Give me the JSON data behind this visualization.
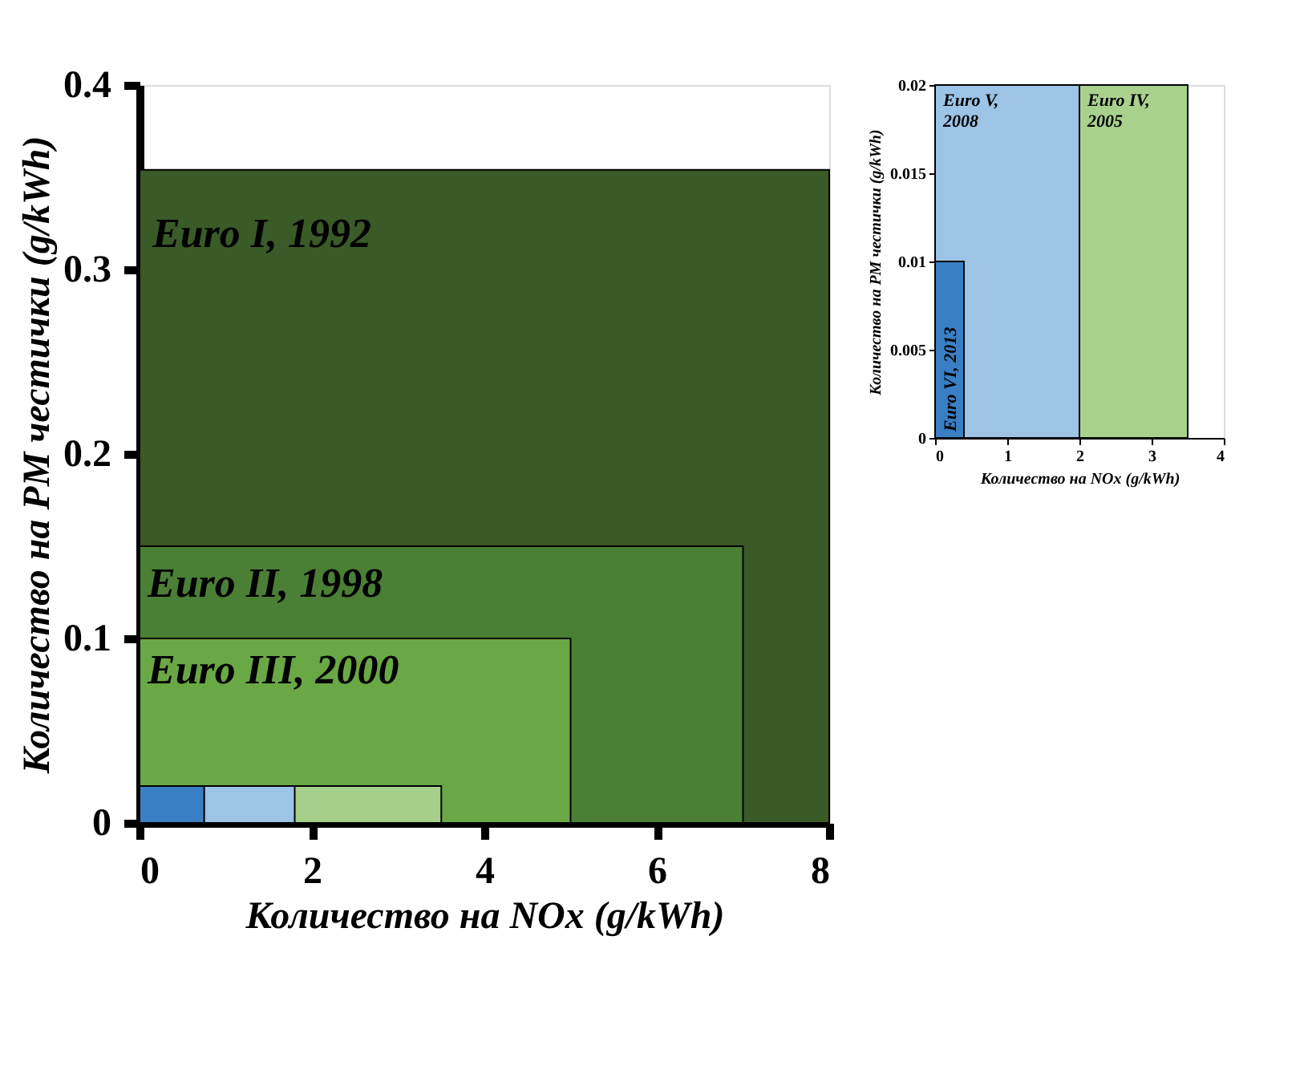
{
  "chart_data": [
    {
      "type": "area",
      "xlabel": "Количество на NOx (g/kWh)",
      "ylabel": "Количество на PM честички (g/kWh)",
      "xlim": [
        0,
        8
      ],
      "xticks": [
        0,
        2,
        4,
        6,
        8
      ],
      "ylim": [
        0,
        0.4
      ],
      "yticks": [
        0,
        0.1,
        0.2,
        0.3,
        0.4
      ],
      "grid": false,
      "legend": false,
      "series": [
        {
          "color": "#3a5a27",
          "x": [
            0,
            8
          ],
          "values": [
            0.354,
            0.354
          ]
        },
        {
          "color": "#4a7f35",
          "x": [
            0,
            7
          ],
          "values": [
            0.15,
            0.15
          ]
        },
        {
          "color": "#6aa845",
          "x": [
            0,
            5
          ],
          "values": [
            0.1,
            0.1
          ]
        },
        {
          "color": "#a6d08a",
          "x": [
            0,
            3.5
          ],
          "values": [
            0.02,
            0.02
          ]
        },
        {
          "color": "#9dc3e6",
          "x": [
            0,
            1.8
          ],
          "values": [
            0.02,
            0.02
          ]
        },
        {
          "color": "#3a7fc4",
          "x": [
            0,
            0.75
          ],
          "values": [
            0.02,
            0.02
          ]
        }
      ],
      "annotations": [
        "Euro I, 1992",
        "Euro II, 1998",
        "Euro III, 2000"
      ]
    },
    {
      "type": "area",
      "xlabel": "Количество на NOx (g/kWh)",
      "ylabel": "Количество на PM честички (g/kWh)",
      "xlim": [
        0,
        4
      ],
      "xticks": [
        0,
        1,
        2,
        3,
        4
      ],
      "ylim": [
        0,
        0.02
      ],
      "yticks": [
        0,
        0.005,
        0.01,
        0.015,
        0.02
      ],
      "grid": false,
      "legend": false,
      "series": [
        {
          "color": "#a9d18e",
          "x": [
            0,
            3.5
          ],
          "values": [
            0.02,
            0.02
          ]
        },
        {
          "color": "#9dc3e6",
          "x": [
            0,
            2
          ],
          "values": [
            0.02,
            0.02
          ]
        },
        {
          "color": "#3a7fc4",
          "x": [
            0,
            0.4
          ],
          "values": [
            0.01,
            0.01
          ]
        }
      ],
      "annotations": [
        "Euro V,\n2008",
        "Euro IV,\n2005",
        "Euro VI, 2013"
      ]
    }
  ]
}
